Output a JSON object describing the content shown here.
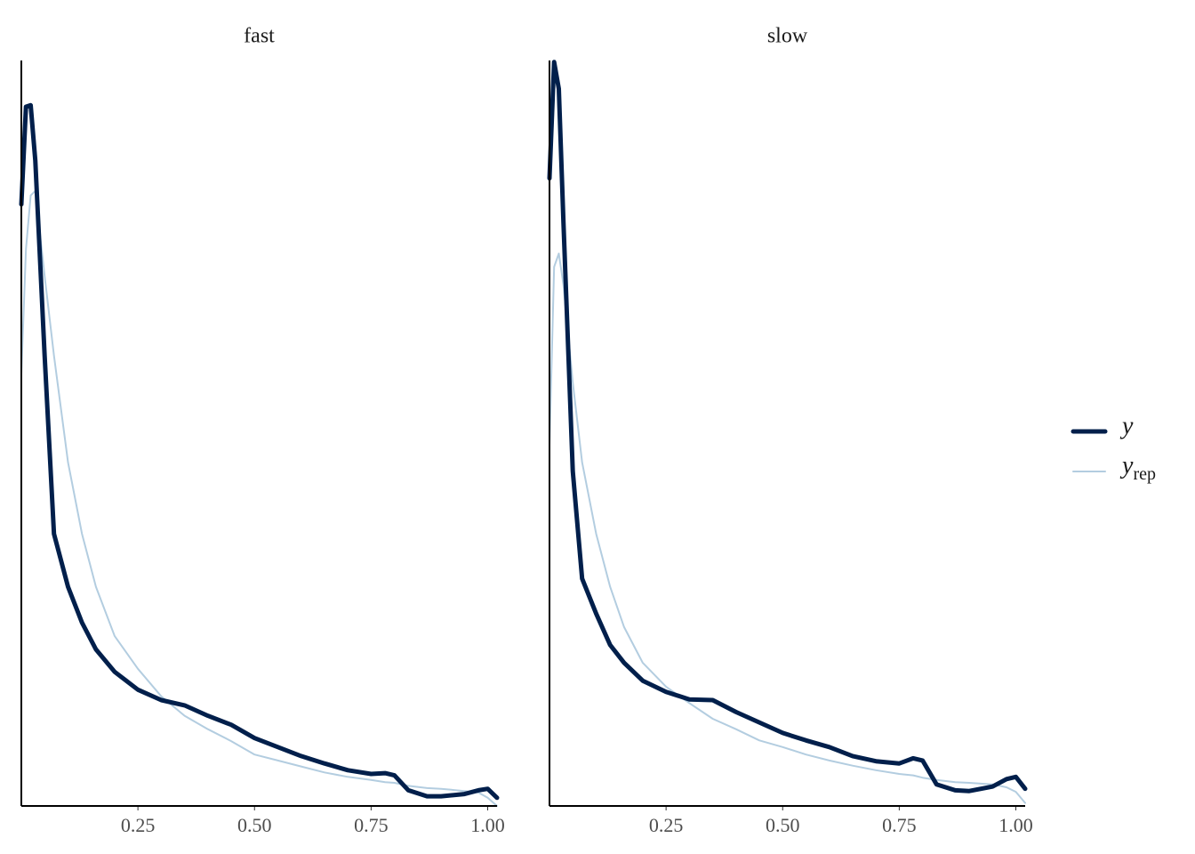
{
  "chart_data": {
    "type": "line",
    "panels": [
      "fast",
      "slow"
    ],
    "x": [
      0,
      0.01,
      0.02,
      0.03,
      0.05,
      0.07,
      0.1,
      0.13,
      0.16,
      0.2,
      0.25,
      0.3,
      0.35,
      0.4,
      0.45,
      0.5,
      0.55,
      0.6,
      0.65,
      0.7,
      0.75,
      0.78,
      0.8,
      0.83,
      0.87,
      0.9,
      0.95,
      0.98,
      1.0,
      1.02
    ],
    "xlim": [
      0,
      1.02
    ],
    "xticks": [
      0.25,
      {
        "value": 0.5,
        "label": "0.50"
      },
      0.75,
      {
        "value": 1,
        "label": "1.00"
      }
    ],
    "ylim": [
      0,
      10
    ],
    "series": [
      {
        "name": "yrep",
        "color": "#b3cde0",
        "values": [
          [
            5.8,
            7.47,
            8.19,
            8.25,
            7.11,
            6.04,
            4.61,
            3.65,
            2.94,
            2.28,
            1.84,
            1.47,
            1.21,
            1.03,
            0.87,
            0.69,
            0.61,
            0.53,
            0.45,
            0.39,
            0.35,
            0.32,
            0.31,
            0.27,
            0.24,
            0.23,
            0.2,
            0.18,
            0.11,
            0
          ],
          [
            4.84,
            7.23,
            7.41,
            6.99,
            5.68,
            4.61,
            3.65,
            2.94,
            2.4,
            1.92,
            1.6,
            1.38,
            1.17,
            1.03,
            0.88,
            0.79,
            0.69,
            0.61,
            0.54,
            0.48,
            0.43,
            0.41,
            0.38,
            0.35,
            0.32,
            0.31,
            0.29,
            0.25,
            0.19,
            0.04
          ]
        ]
      },
      {
        "name": "y",
        "color": "#011f4b",
        "values": [
          [
            8.07,
            9.38,
            9.4,
            8.66,
            6.04,
            3.65,
            2.94,
            2.46,
            2.1,
            1.8,
            1.56,
            1.42,
            1.35,
            1.21,
            1.09,
            0.91,
            0.79,
            0.67,
            0.57,
            0.48,
            0.43,
            0.44,
            0.41,
            0.21,
            0.13,
            0.13,
            0.16,
            0.21,
            0.23,
            0.11
          ],
          [
            8.42,
            9.98,
            9.62,
            7.83,
            4.49,
            3.05,
            2.58,
            2.16,
            1.92,
            1.68,
            1.53,
            1.43,
            1.42,
            1.26,
            1.12,
            0.98,
            0.88,
            0.79,
            0.67,
            0.6,
            0.57,
            0.64,
            0.61,
            0.29,
            0.21,
            0.2,
            0.26,
            0.36,
            0.39,
            0.23
          ]
        ]
      }
    ]
  }
}
